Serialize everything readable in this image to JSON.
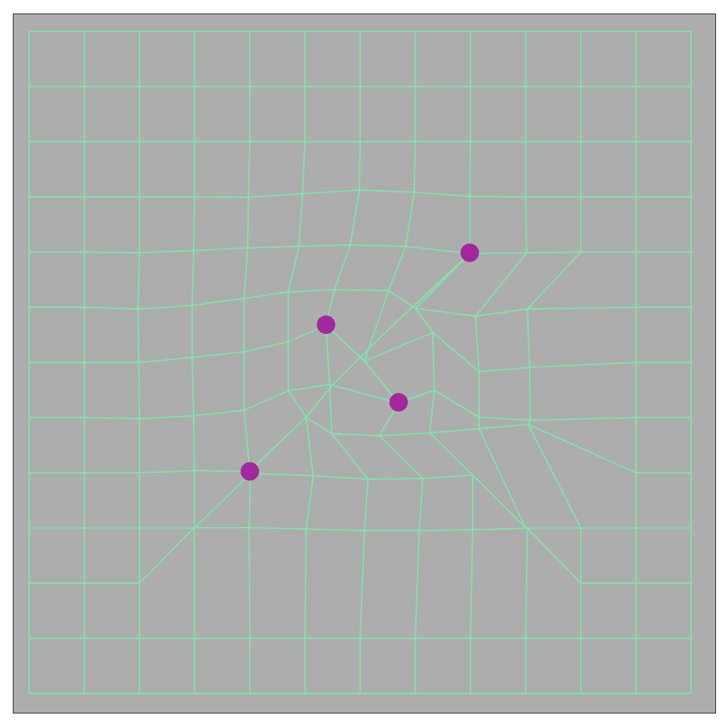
{
  "colors": {
    "background": "#adadad",
    "frame_border": "#222222",
    "mesh_line": "#7fe4a6",
    "handle": "#a3289e"
  },
  "mesh": {
    "rows": 13,
    "cols": 13
  },
  "handles": [
    {
      "name": "handle-top-right"
    },
    {
      "name": "handle-upper-left"
    },
    {
      "name": "handle-center"
    },
    {
      "name": "handle-lower-left"
    }
  ]
}
